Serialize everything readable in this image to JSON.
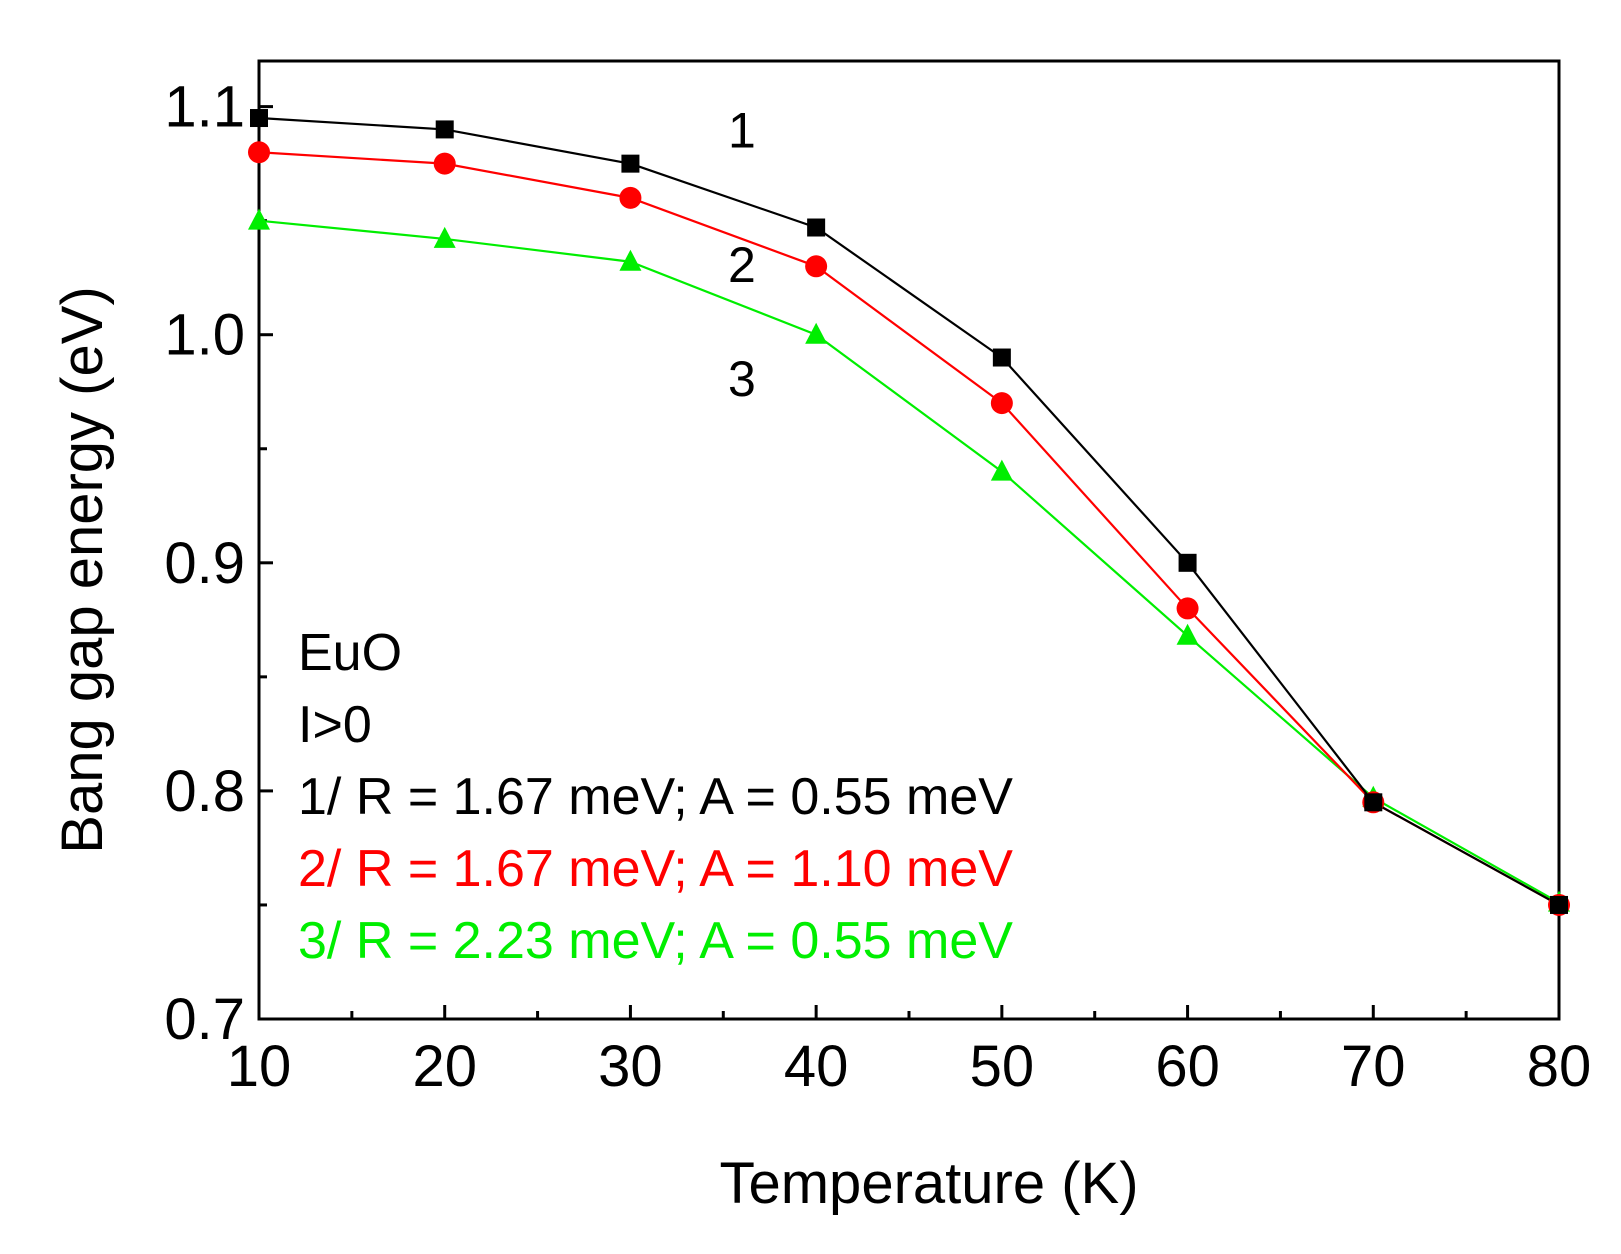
{
  "chart_data": {
    "type": "line",
    "title": "",
    "xlabel": "Temperature (K)",
    "ylabel": "Bang gap energy (eV)",
    "xlim": [
      10,
      80
    ],
    "ylim": [
      0.7,
      1.12
    ],
    "xticks": [
      10,
      20,
      30,
      40,
      50,
      60,
      70,
      80
    ],
    "xtick_labels": [
      "10",
      "20",
      "30",
      "40",
      "50",
      "60",
      "70",
      "80"
    ],
    "yticks": [
      0.7,
      0.8,
      0.9,
      1.0,
      1.1
    ],
    "ytick_labels": [
      "0.7",
      "0.8",
      "0.9",
      "1.0",
      "1.1"
    ],
    "x": [
      10,
      20,
      30,
      40,
      50,
      60,
      70,
      80
    ],
    "series": [
      {
        "name": "1",
        "label": "1/ R = 1.67 meV; A = 0.55 meV",
        "color": "#000000",
        "marker": "square",
        "values": [
          1.095,
          1.09,
          1.075,
          1.047,
          0.99,
          0.9,
          0.795,
          0.75
        ]
      },
      {
        "name": "2",
        "label": "2/ R = 1.67 meV; A = 1.10 meV",
        "color": "#ff0000",
        "marker": "circle",
        "values": [
          1.08,
          1.075,
          1.06,
          1.03,
          0.97,
          0.88,
          0.795,
          0.75
        ]
      },
      {
        "name": "3",
        "label": "3/ R = 2.23 meV; A = 0.55 meV",
        "color": "#00ee00",
        "marker": "triangle",
        "values": [
          1.05,
          1.042,
          1.032,
          1.0,
          0.94,
          0.868,
          0.797,
          0.751
        ]
      }
    ],
    "curve_labels": [
      {
        "text": "1",
        "x": 36,
        "y": 1.09
      },
      {
        "text": "2",
        "x": 36,
        "y": 1.031
      },
      {
        "text": "3",
        "x": 36,
        "y": 0.981
      }
    ],
    "annotations": {
      "material": "EuO",
      "condition": "I>0"
    },
    "grid": false,
    "legend": "bottom-left"
  }
}
